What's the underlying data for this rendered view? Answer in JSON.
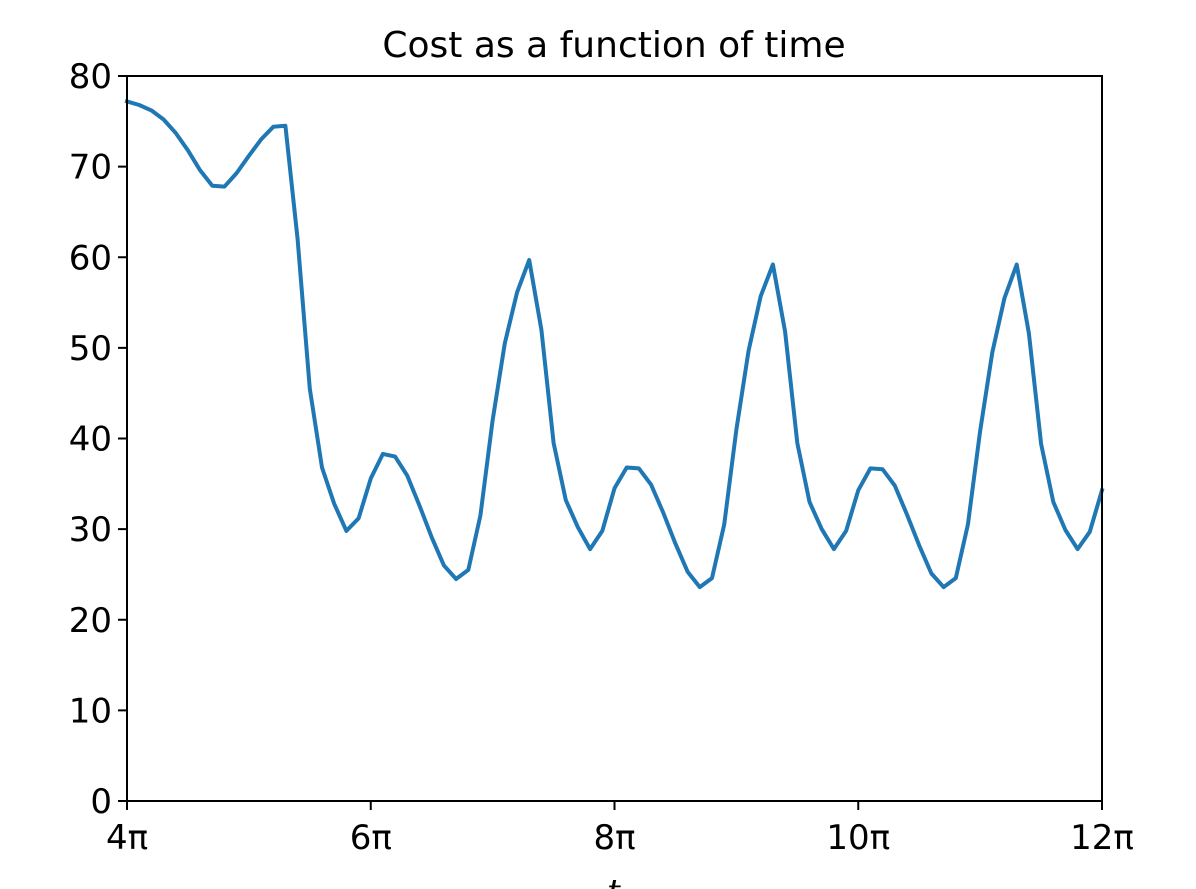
{
  "chart_data": {
    "type": "line",
    "title": "Cost as a function of time",
    "xlabel": "t",
    "ylabel": "",
    "x_unit": "pi",
    "xlim": [
      4,
      12
    ],
    "ylim": [
      0,
      80
    ],
    "grid": false,
    "legend": "none",
    "xticks": [
      4,
      6,
      8,
      10,
      12
    ],
    "xtick_labels": [
      "4π",
      "6π",
      "8π",
      "10π",
      "12π"
    ],
    "yticks": [
      0,
      10,
      20,
      30,
      40,
      50,
      60,
      70,
      80
    ],
    "ytick_labels": [
      "0",
      "10",
      "20",
      "30",
      "40",
      "50",
      "60",
      "70",
      "80"
    ],
    "series": [
      {
        "color": "#1f77b4",
        "x": [
          4.0,
          4.1,
          4.2,
          4.3,
          4.4,
          4.5,
          4.6,
          4.7,
          4.8,
          4.9,
          5.0,
          5.1,
          5.2,
          5.3,
          5.4,
          5.5,
          5.6,
          5.7,
          5.8,
          5.9,
          6.0,
          6.1,
          6.2,
          6.3,
          6.4,
          6.5,
          6.6,
          6.7,
          6.8,
          6.9,
          7.0,
          7.1,
          7.2,
          7.3,
          7.4,
          7.5,
          7.6,
          7.7,
          7.8,
          7.9,
          8.0,
          8.1,
          8.2,
          8.3,
          8.4,
          8.5,
          8.6,
          8.7,
          8.8,
          8.9,
          9.0,
          9.1,
          9.2,
          9.3,
          9.4,
          9.5,
          9.6,
          9.7,
          9.8,
          9.9,
          10.0,
          10.1,
          10.2,
          10.3,
          10.4,
          10.5,
          10.6,
          10.7,
          10.8,
          10.9,
          11.0,
          11.1,
          11.2,
          11.3,
          11.4,
          11.5,
          11.6,
          11.7,
          11.8,
          11.9,
          12.0
        ],
        "y": [
          77.2,
          76.8,
          76.2,
          75.2,
          73.7,
          71.8,
          69.6,
          67.9,
          67.8,
          69.3,
          71.2,
          73.0,
          74.4,
          74.5,
          62.0,
          45.5,
          36.8,
          32.8,
          29.8,
          31.2,
          35.6,
          38.3,
          38.0,
          35.9,
          32.6,
          29.1,
          26.0,
          24.5,
          25.5,
          31.5,
          42.0,
          50.5,
          56.1,
          59.7,
          52.0,
          39.5,
          33.2,
          30.2,
          27.8,
          29.8,
          34.5,
          36.8,
          36.7,
          34.9,
          31.8,
          28.4,
          25.3,
          23.6,
          24.6,
          30.5,
          41.0,
          49.7,
          55.7,
          59.2,
          51.8,
          39.5,
          33.0,
          30.0,
          27.8,
          29.8,
          34.3,
          36.7,
          36.6,
          34.8,
          31.6,
          28.2,
          25.1,
          23.6,
          24.6,
          30.5,
          40.8,
          49.5,
          55.5,
          59.2,
          51.6,
          39.4,
          33.0,
          29.9,
          27.8,
          29.7,
          34.3
        ]
      }
    ]
  }
}
